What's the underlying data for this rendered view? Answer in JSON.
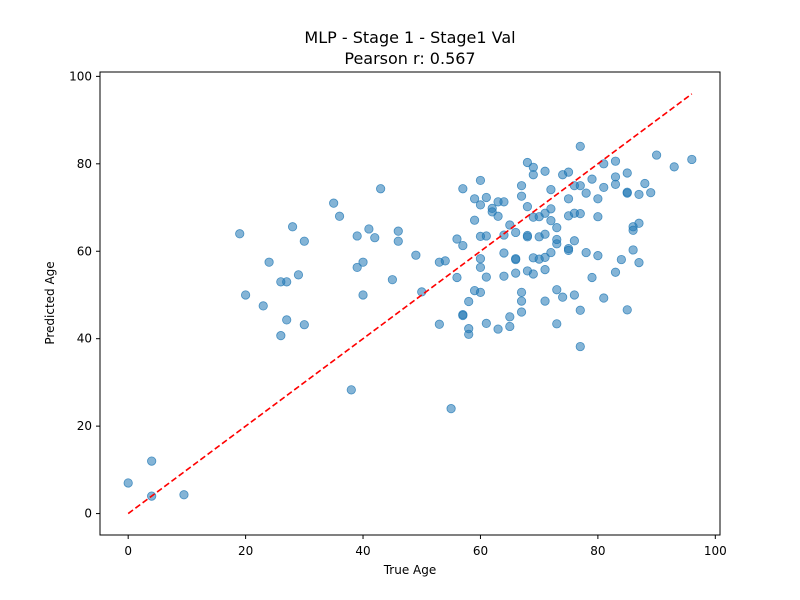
{
  "chart_data": {
    "type": "scatter",
    "title": "MLP - Stage 1 - Stage1 Val",
    "subtitle": "Pearson r: 0.567",
    "xlabel": "True Age",
    "ylabel": "Predicted Age",
    "xlim": [
      -4.8,
      100.8
    ],
    "ylim": [
      -4.9,
      101.0
    ],
    "xticks": [
      0,
      20,
      40,
      60,
      80,
      100
    ],
    "yticks": [
      0,
      20,
      40,
      60,
      80,
      100
    ],
    "grid": false,
    "colors": {
      "points": "#1f77b4",
      "identity_line": "#ff0000"
    },
    "identity_line": {
      "from": [
        0,
        0
      ],
      "to": [
        96,
        96
      ],
      "style": "dashed"
    },
    "points": [
      [
        0,
        7
      ],
      [
        4,
        4
      ],
      [
        4,
        12
      ],
      [
        9.5,
        4.3
      ],
      [
        19,
        64
      ],
      [
        20,
        50
      ],
      [
        23,
        47.5
      ],
      [
        24,
        57.5
      ],
      [
        26,
        53
      ],
      [
        26,
        40.7
      ],
      [
        27,
        53
      ],
      [
        27,
        44.3
      ],
      [
        28,
        65.6
      ],
      [
        29,
        54.6
      ],
      [
        30,
        62.3
      ],
      [
        30,
        43.2
      ],
      [
        35,
        71
      ],
      [
        36,
        68
      ],
      [
        38,
        28.3
      ],
      [
        39,
        63.5
      ],
      [
        39,
        56.3
      ],
      [
        40,
        57.5
      ],
      [
        40,
        50
      ],
      [
        41,
        65.1
      ],
      [
        42,
        63.1
      ],
      [
        43,
        74.3
      ],
      [
        45,
        53.5
      ],
      [
        46,
        64.6
      ],
      [
        46,
        62.3
      ],
      [
        49,
        59.1
      ],
      [
        50,
        50.7
      ],
      [
        53,
        43.3
      ],
      [
        53,
        57.5
      ],
      [
        54,
        57.8
      ],
      [
        55,
        24
      ],
      [
        56,
        62.8
      ],
      [
        56,
        54
      ],
      [
        57,
        74.3
      ],
      [
        57,
        61.3
      ],
      [
        57,
        45.5
      ],
      [
        57,
        45.3
      ],
      [
        58,
        48.5
      ],
      [
        58,
        42.3
      ],
      [
        58,
        41
      ],
      [
        59,
        72
      ],
      [
        59,
        67.1
      ],
      [
        59,
        51
      ],
      [
        60,
        76.2
      ],
      [
        60,
        70.6
      ],
      [
        60,
        63.4
      ],
      [
        60,
        58.3
      ],
      [
        60,
        56.3
      ],
      [
        60,
        50.6
      ],
      [
        61,
        72.3
      ],
      [
        61,
        63.5
      ],
      [
        61,
        54.1
      ],
      [
        61,
        43.5
      ],
      [
        62,
        69.8
      ],
      [
        62,
        69
      ],
      [
        63,
        71.3
      ],
      [
        63,
        68
      ],
      [
        63,
        42.2
      ],
      [
        64,
        71.3
      ],
      [
        64,
        63.7
      ],
      [
        64,
        59.6
      ],
      [
        64,
        54.3
      ],
      [
        65,
        66
      ],
      [
        65,
        45
      ],
      [
        65,
        42.8
      ],
      [
        66,
        64.3
      ],
      [
        66,
        58.3
      ],
      [
        66,
        58.1
      ],
      [
        66,
        55
      ],
      [
        67,
        75
      ],
      [
        67,
        72.6
      ],
      [
        67,
        50.6
      ],
      [
        67,
        48.6
      ],
      [
        67,
        46.1
      ],
      [
        68,
        80.3
      ],
      [
        68,
        70.2
      ],
      [
        68,
        63.6
      ],
      [
        68,
        63.3
      ],
      [
        68,
        55.5
      ],
      [
        69,
        79.2
      ],
      [
        69,
        77.5
      ],
      [
        69,
        67.8
      ],
      [
        69,
        58.5
      ],
      [
        69,
        54.8
      ],
      [
        70,
        67.9
      ],
      [
        70,
        63.3
      ],
      [
        70,
        58.2
      ],
      [
        71,
        78.3
      ],
      [
        71,
        68.7
      ],
      [
        71,
        63.9
      ],
      [
        71,
        58.6
      ],
      [
        71,
        55.8
      ],
      [
        71,
        48.6
      ],
      [
        72,
        74.1
      ],
      [
        72,
        69.7
      ],
      [
        72,
        67
      ],
      [
        72,
        59.7
      ],
      [
        73,
        65.4
      ],
      [
        73,
        62.7
      ],
      [
        73,
        61.7
      ],
      [
        73,
        51.2
      ],
      [
        73,
        43.4
      ],
      [
        74,
        77.5
      ],
      [
        74,
        49.5
      ],
      [
        75,
        78.1
      ],
      [
        75,
        72
      ],
      [
        75,
        68.1
      ],
      [
        75,
        60.6
      ],
      [
        75,
        60.2
      ],
      [
        76,
        75
      ],
      [
        76,
        68.7
      ],
      [
        76,
        62.4
      ],
      [
        76,
        50
      ],
      [
        77,
        84
      ],
      [
        77,
        75
      ],
      [
        77,
        68.6
      ],
      [
        77,
        46.5
      ],
      [
        77,
        38.2
      ],
      [
        78,
        73.3
      ],
      [
        78,
        59.7
      ],
      [
        79,
        76.5
      ],
      [
        79,
        54
      ],
      [
        80,
        72
      ],
      [
        80,
        67.9
      ],
      [
        80,
        59
      ],
      [
        81,
        80
      ],
      [
        81,
        74.6
      ],
      [
        81,
        49.3
      ],
      [
        83,
        80.6
      ],
      [
        83,
        77
      ],
      [
        83,
        75.3
      ],
      [
        83,
        55.2
      ],
      [
        84,
        58.1
      ],
      [
        85,
        77.9
      ],
      [
        85,
        73.3
      ],
      [
        85,
        73.5
      ],
      [
        85,
        46.6
      ],
      [
        86,
        65.6
      ],
      [
        86,
        64.8
      ],
      [
        86,
        60.3
      ],
      [
        87,
        73
      ],
      [
        87,
        66.4
      ],
      [
        87,
        57.4
      ],
      [
        88,
        75.5
      ],
      [
        89,
        73.4
      ],
      [
        90,
        82
      ],
      [
        93,
        79.3
      ],
      [
        96,
        81
      ]
    ]
  }
}
